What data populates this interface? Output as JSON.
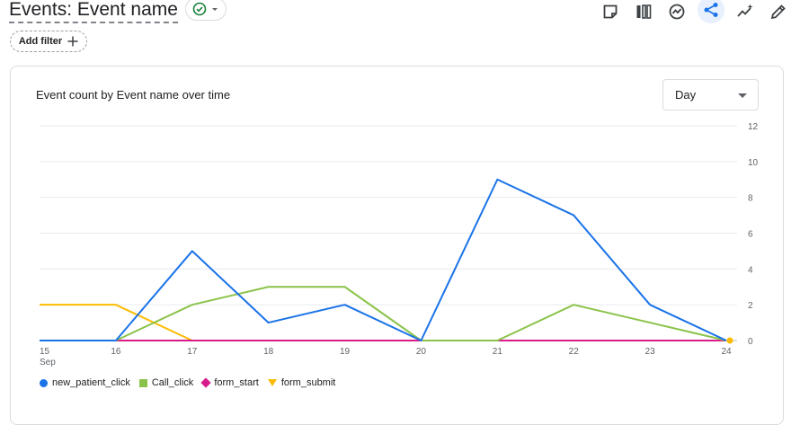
{
  "header": {
    "title": "Events: Event name",
    "status_color": "#188038",
    "toolbar_icons": [
      "sticky-note-icon",
      "compare-columns-icon",
      "insights-icon",
      "share-icon",
      "sparkle-trend-icon",
      "edit-pencil-icon"
    ],
    "active_icon": "share-icon",
    "accent": "#1a73e8"
  },
  "filters": {
    "add_label": "Add filter"
  },
  "card": {
    "title": "Event count by Event name over time",
    "period_select": "Day"
  },
  "chart_data": {
    "type": "line",
    "title": "Event count by Event name over time",
    "x": [
      "15",
      "16",
      "17",
      "18",
      "19",
      "20",
      "21",
      "22",
      "23",
      "24"
    ],
    "x_sublabel_first": "Sep",
    "ylim": [
      0,
      12
    ],
    "yticks": [
      0,
      2,
      4,
      6,
      8,
      10,
      12
    ],
    "y_axis_position": "right",
    "grid": true,
    "legend_position": "bottom-left",
    "series": [
      {
        "name": "new_patient_click",
        "color": "#1a73e8",
        "marker": "circle",
        "values": [
          0,
          0,
          5,
          1,
          2,
          0,
          9,
          7,
          2,
          0
        ]
      },
      {
        "name": "Call_click",
        "color": "#8bc34a",
        "marker": "square",
        "values": [
          0,
          0,
          2,
          3,
          3,
          0,
          0,
          2,
          1,
          0
        ]
      },
      {
        "name": "form_start",
        "color": "#d81b8a",
        "marker": "diamond",
        "values": [
          0,
          0,
          0,
          0,
          0,
          0,
          0,
          0,
          0,
          0
        ]
      },
      {
        "name": "form_submit",
        "color": "#fbbc04",
        "marker": "triangle",
        "values": [
          2,
          2,
          0,
          0,
          0,
          0,
          0,
          0,
          0,
          0
        ]
      }
    ]
  }
}
